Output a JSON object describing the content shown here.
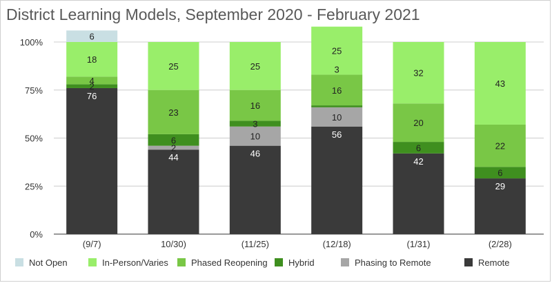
{
  "chart_data": {
    "type": "bar",
    "stacked": true,
    "percent": true,
    "title": "District Learning Models, September 2020 - February 2021",
    "categories": [
      "(9/7)",
      "10/30)",
      "(11/25)",
      "(12/18)",
      "(1/31)",
      "(2/28)"
    ],
    "y_ticks": [
      "0%",
      "25%",
      "50%",
      "75%",
      "100%"
    ],
    "ylim": [
      0,
      100
    ],
    "legend_position": "bottom",
    "series": [
      {
        "name": "Remote",
        "color": "#3a3a3a",
        "label_color": "#ffffff",
        "values": [
          76,
          44,
          46,
          56,
          42,
          29
        ]
      },
      {
        "name": "Phasing to Remote",
        "color": "#a6a6a6",
        "label_color": "#222222",
        "values": [
          0,
          2,
          10,
          10,
          0,
          0
        ]
      },
      {
        "name": "Hybrid",
        "color": "#3f8f1f",
        "label_color": "#222222",
        "values": [
          2,
          6,
          3,
          1,
          6,
          6
        ]
      },
      {
        "name": "Phased Reopening",
        "color": "#79c746",
        "label_color": "#222222",
        "values": [
          4,
          23,
          16,
          16,
          20,
          22
        ]
      },
      {
        "name": "In-Person/Varies",
        "color": "#99ee6a",
        "label_color": "#222222",
        "values": [
          18,
          25,
          25,
          25,
          32,
          43
        ]
      },
      {
        "name": "Not Open",
        "color": "#c9dfe3",
        "label_color": "#222222",
        "values": [
          6,
          0,
          0,
          0,
          0,
          0
        ]
      }
    ],
    "data_labels": [
      [
        "76",
        "",
        "2",
        "4",
        "18",
        "6"
      ],
      [
        "44",
        "2",
        "6",
        "23",
        "25",
        ""
      ],
      [
        "46",
        "10",
        "3",
        "16",
        "25",
        ""
      ],
      [
        "56",
        "10",
        "",
        "16",
        "25",
        ""
      ],
      [
        "42",
        "",
        "6",
        "20",
        "32",
        ""
      ],
      [
        "29",
        "",
        "6",
        "22",
        "43",
        ""
      ]
    ],
    "extra_labels": [
      {
        "category_index": 3,
        "series_index": 4,
        "text": "3"
      }
    ],
    "legend_order": [
      "Not Open",
      "In-Person/Varies",
      "Phased Reopening",
      "Hybrid",
      "Phasing to Remote",
      "Remote"
    ]
  }
}
